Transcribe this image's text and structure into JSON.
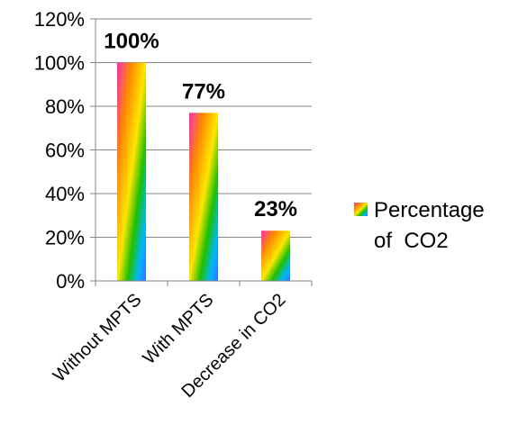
{
  "chart_data": {
    "type": "bar",
    "categories": [
      "Without MPTS",
      "With MPTS",
      "Decrease in CO2"
    ],
    "series": [
      {
        "name": "Percentage of  CO2",
        "values": [
          100,
          77,
          23
        ]
      }
    ],
    "data_labels": [
      "100%",
      "77%",
      "23%"
    ],
    "y_ticks": [
      "0%",
      "20%",
      "40%",
      "60%",
      "80%",
      "100%",
      "120%"
    ],
    "ylim": [
      0,
      120
    ],
    "grid": true,
    "legend": {
      "position": "right",
      "line1": "Percentage",
      "line2": "of  CO2"
    },
    "colors": {
      "bar_gradient": [
        "#ff2db4",
        "#ff8a00",
        "#ffe600",
        "#20c000",
        "#00b6ff",
        "#3a6cff"
      ],
      "grid": "#868686",
      "axis": "#868686",
      "text": "#000000"
    }
  }
}
